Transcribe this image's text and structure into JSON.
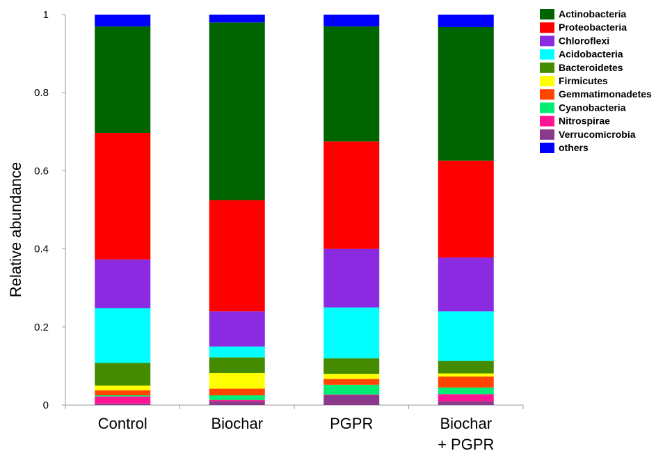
{
  "chart_data": {
    "type": "bar",
    "stacked": true,
    "title": "",
    "xlabel": "",
    "ylabel": "Relative abundance",
    "ylim": [
      0,
      1
    ],
    "yticks": [
      "0",
      "0.2",
      "0.4",
      "0.6",
      "0.8",
      "1"
    ],
    "categories": [
      [
        "Control"
      ],
      [
        "Biochar"
      ],
      [
        "PGPR"
      ],
      [
        "Biochar",
        "+ PGPR"
      ]
    ],
    "legend_position": "top-right",
    "series": [
      {
        "name": "Verrucomicrobia",
        "color": "#8B3A8B",
        "values": [
          0.004,
          0.01,
          0.025,
          0.01
        ]
      },
      {
        "name": "Nitrospirae",
        "color": "#FF1493",
        "values": [
          0.018,
          0.003,
          0.002,
          0.018
        ]
      },
      {
        "name": "Cyanobacteria",
        "color": "#00EE76",
        "values": [
          0.003,
          0.012,
          0.025,
          0.017
        ]
      },
      {
        "name": "Gemmatimonadetes",
        "color": "#FF4500",
        "values": [
          0.013,
          0.017,
          0.015,
          0.028
        ]
      },
      {
        "name": "Firmicutes",
        "color": "#FFFF00",
        "values": [
          0.012,
          0.04,
          0.013,
          0.008
        ]
      },
      {
        "name": "Bacteroidetes",
        "color": "#458B00",
        "values": [
          0.058,
          0.04,
          0.04,
          0.032
        ]
      },
      {
        "name": "Acidobacteria",
        "color": "#00FFFF",
        "values": [
          0.14,
          0.028,
          0.13,
          0.127
        ]
      },
      {
        "name": "Chloroflexi",
        "color": "#8A2BE2",
        "values": [
          0.125,
          0.09,
          0.15,
          0.138
        ]
      },
      {
        "name": "Proteobacteria",
        "color": "#FF0000",
        "values": [
          0.324,
          0.285,
          0.275,
          0.248
        ]
      },
      {
        "name": "Actinobacteria",
        "color": "#006400",
        "values": [
          0.273,
          0.455,
          0.295,
          0.342
        ]
      },
      {
        "name": "others",
        "color": "#0000FF",
        "values": [
          0.03,
          0.02,
          0.03,
          0.032
        ]
      }
    ],
    "legend_order": [
      "Actinobacteria",
      "Proteobacteria",
      "Chloroflexi",
      "Acidobacteria",
      "Bacteroidetes",
      "Firmicutes",
      "Gemmatimonadetes",
      "Cyanobacteria",
      "Nitrospirae",
      "Verrucomicrobia",
      "others"
    ]
  }
}
